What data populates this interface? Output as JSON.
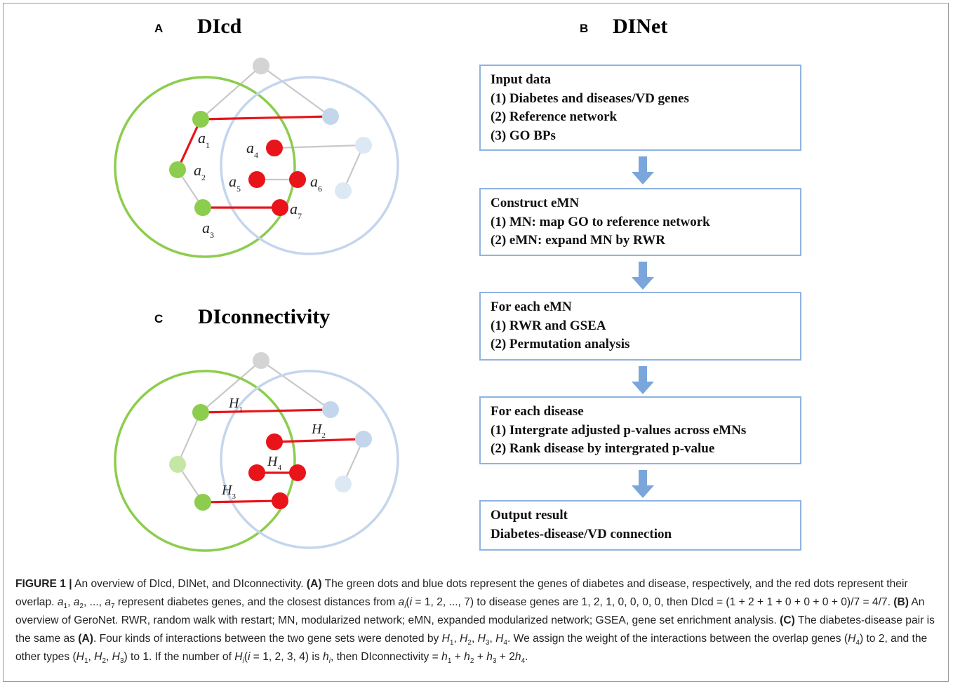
{
  "panel_a": {
    "letter": "A",
    "title": "DIcd"
  },
  "panel_b": {
    "letter": "B",
    "title": "DINet"
  },
  "panel_c": {
    "letter": "C",
    "title": "DIconnectivity"
  },
  "diagram_a_labels": [
    "a1",
    "a2",
    "a3",
    "a4",
    "a5",
    "a6",
    "a7"
  ],
  "diagram_c_labels": [
    "H1",
    "H2",
    "H3",
    "H4"
  ],
  "colors": {
    "diabetes_green": "#8ccd4d",
    "disease_blue": "#c4d6ec",
    "overlap_red": "#e8141a",
    "box_border": "#8fb3df",
    "arrow_blue": "#7aa6db"
  },
  "flow": [
    {
      "lines": [
        "Input data",
        "(1) Diabetes and diseases/VD genes",
        "(2) Reference network",
        "(3) GO BPs"
      ]
    },
    {
      "lines": [
        "Construct eMN",
        "(1) MN: map GO to reference network",
        "(2) eMN: expand MN by RWR"
      ]
    },
    {
      "lines": [
        "For each eMN",
        "(1) RWR and GSEA",
        "(2) Permutation analysis"
      ]
    },
    {
      "lines": [
        "For each disease",
        "(1) Intergrate adjusted p-values across eMNs",
        "(2) Rank disease by intergrated p-value"
      ]
    },
    {
      "lines": [
        "Output result",
        "Diabetes-disease/VD connection"
      ]
    }
  ],
  "caption": {
    "figure_label": "FIGURE 1 |",
    "intro": " An overview of DIcd, DINet, and DIconnectivity. ",
    "a_label": "(A)",
    "a_text_1": " The green dots and blue dots represent the genes of diabetes and disease, respectively, and the red dots represent their overlap. ",
    "a_text_2": " represent diabetes genes, and the closest distances from ",
    "a_text_3": " to disease genes are 1, 2, 1, 0, 0, 0, 0, then DIcd = (1 + 2 + 1 + 0 + 0 + 0 + 0)/7 = 4/7. ",
    "b_label": "(B)",
    "b_text": " An overview of GeroNet. RWR, random walk with restart; MN, modularized network; eMN, expanded modularized network; GSEA, gene set enrichment analysis. ",
    "c_label": "(C)",
    "c_text_1": " The diabetes-disease pair is the same as ",
    "c_ref": "(A)",
    "c_text_2": ". Four kinds of interactions between the two gene sets were denoted by ",
    "c_text_3": ". We assign the weight of the interactions between the overlap genes (",
    "c_text_4": ") to 2, and the other types (",
    "c_text_5": ") to 1. If the number of ",
    "c_text_6": " is ",
    "c_text_7": ", then DIconnectivity = "
  }
}
